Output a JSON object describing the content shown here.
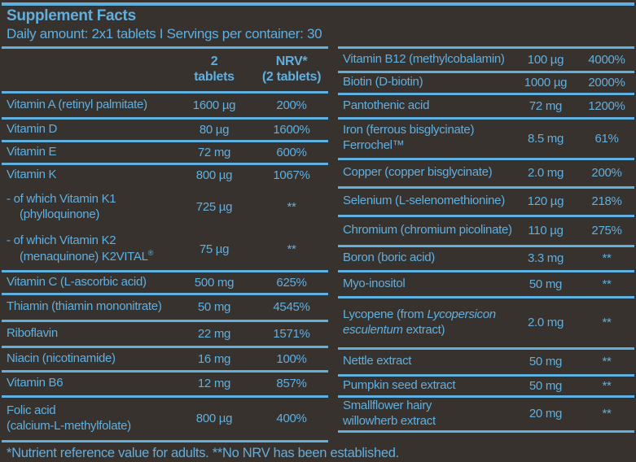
{
  "colors": {
    "background": "#38322f",
    "accent_blue": "#5fafdf"
  },
  "header": {
    "title": "Supplement Facts",
    "subtitle": "Daily amount: 2x1 tablets I Servings per container: 30"
  },
  "table_header": {
    "amount_line1": "2",
    "amount_line2": "tablets",
    "nrv_line1": "NRV*",
    "nrv_line2": "(2 tablets)"
  },
  "left_rows": [
    {
      "name": [
        "Vitamin A (retinyl palmitate)"
      ],
      "amount": "1600 µg",
      "nrv": "200%"
    },
    {
      "name": [
        "Vitamin D"
      ],
      "amount": "80 µg",
      "nrv": "1600%"
    },
    {
      "name": [
        "Vitamin E"
      ],
      "amount": "72 mg",
      "nrv": "600%"
    },
    {
      "name": [
        "Vitamin K"
      ],
      "amount": "800 µg",
      "nrv": "1067%",
      "noline": true
    },
    {
      "name": [
        "- of which Vitamin K1",
        "(phylloquinone)"
      ],
      "amount": "725 µg",
      "nrv": "**",
      "sub": true,
      "noline": true
    },
    {
      "name": [
        "- of which Vitamin K2",
        [
          {
            "t": "(menaquinone) K2VITAL"
          },
          {
            "t": "®",
            "sup": true
          }
        ]
      ],
      "amount": "75 µg",
      "nrv": "**",
      "sub": true
    },
    {
      "name": [
        "Vitamin C (L-ascorbic acid)"
      ],
      "amount": "500 mg",
      "nrv": "625%"
    },
    {
      "name": [
        "Thiamin (thiamin mononitrate)"
      ],
      "amount": "50 mg",
      "nrv": "4545%"
    },
    {
      "name": [
        "Riboflavin"
      ],
      "amount": "22 mg",
      "nrv": "1571%"
    },
    {
      "name": [
        "Niacin (nicotinamide)"
      ],
      "amount": "16 mg",
      "nrv": "100%"
    },
    {
      "name": [
        "Vitamin B6"
      ],
      "amount": "12 mg",
      "nrv": "857%"
    },
    {
      "name": [
        "Folic acid",
        "(calcium-L-methylfolate)"
      ],
      "amount": "800 µg",
      "nrv": "400%"
    }
  ],
  "right_rows": [
    {
      "name": [
        "Vitamin B12 (methylcobalamin)"
      ],
      "amount": "100 µg",
      "nrv": "4000%"
    },
    {
      "name": [
        "Biotin (D-biotin)"
      ],
      "amount": "1000 µg",
      "nrv": "2000%"
    },
    {
      "name": [
        "Pantothenic acid"
      ],
      "amount": "72 mg",
      "nrv": "1200%"
    },
    {
      "name": [
        "Iron (ferrous bisglycinate)",
        "Ferrochel™"
      ],
      "amount": "8.5 mg",
      "nrv": "61%"
    },
    {
      "name": [
        "Copper (copper bisglycinate)"
      ],
      "amount": "2.0 mg",
      "nrv": "200%"
    },
    {
      "name": [
        "Selenium (L-selenomethionine)"
      ],
      "amount": "120 µg",
      "nrv": "218%"
    },
    {
      "name": [
        "Chromium (chromium picolinate)"
      ],
      "amount": "110 µg",
      "nrv": "275%"
    },
    {
      "name": [
        "Boron (boric acid)"
      ],
      "amount": "3.3 mg",
      "nrv": "**"
    },
    {
      "name": [
        "Myo-inositol"
      ],
      "amount": "50 mg",
      "nrv": "**"
    },
    {
      "name": [
        [
          {
            "t": "Lycopene (from "
          },
          {
            "t": "Lycopersicon",
            "i": true
          }
        ],
        [
          {
            "t": "esculentum",
            "i": true
          },
          {
            "t": " extract)"
          }
        ]
      ],
      "amount": "2.0 mg",
      "nrv": "**"
    },
    {
      "name": [
        "Nettle extract"
      ],
      "amount": "50 mg",
      "nrv": "**"
    },
    {
      "name": [
        "Pumpkin seed extract"
      ],
      "amount": "50 mg",
      "nrv": "**"
    },
    {
      "name": [
        "Smallflower hairy",
        "willowherb extract"
      ],
      "amount": "20 mg",
      "nrv": "**"
    }
  ],
  "footnote": "*Nutrient reference value for adults. **No NRV has been established."
}
